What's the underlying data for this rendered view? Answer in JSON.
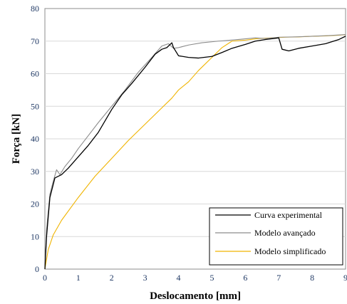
{
  "chart_data": {
    "type": "line",
    "title": "",
    "xlabel": "Deslocamento [mm]",
    "ylabel": "Força [kN]",
    "xlim": [
      0,
      9
    ],
    "ylim": [
      0,
      80
    ],
    "x_ticks": [
      "0",
      "1",
      "2",
      "3",
      "4",
      "5",
      "6",
      "7",
      "8",
      "9"
    ],
    "y_ticks": [
      "0",
      "10",
      "20",
      "30",
      "40",
      "50",
      "60",
      "70",
      "80"
    ],
    "grid": "horizontal",
    "legend_position": "bottom-right",
    "series": [
      {
        "name": "Curva experimental",
        "color": "#000000",
        "points": [
          [
            0,
            0
          ],
          [
            0.05,
            10
          ],
          [
            0.15,
            22
          ],
          [
            0.3,
            28
          ],
          [
            0.5,
            29
          ],
          [
            0.7,
            31
          ],
          [
            1.0,
            34.5
          ],
          [
            1.3,
            38
          ],
          [
            1.6,
            42
          ],
          [
            2.0,
            49
          ],
          [
            2.3,
            53.5
          ],
          [
            2.6,
            57
          ],
          [
            3.0,
            62
          ],
          [
            3.3,
            66
          ],
          [
            3.5,
            67.5
          ],
          [
            3.65,
            68
          ],
          [
            3.8,
            69.5
          ],
          [
            3.85,
            68
          ],
          [
            4.0,
            65.5
          ],
          [
            4.3,
            65
          ],
          [
            4.6,
            64.8
          ],
          [
            5.0,
            65.3
          ],
          [
            5.3,
            66.5
          ],
          [
            5.6,
            67.8
          ],
          [
            6.0,
            69
          ],
          [
            6.3,
            70
          ],
          [
            6.6,
            70.5
          ],
          [
            7.0,
            71
          ],
          [
            7.1,
            67.5
          ],
          [
            7.3,
            67
          ],
          [
            7.6,
            67.8
          ],
          [
            8.0,
            68.5
          ],
          [
            8.4,
            69.2
          ],
          [
            8.8,
            70.5
          ],
          [
            9.0,
            71.5
          ]
        ]
      },
      {
        "name": "Modelo avançado",
        "color": "#8c8c8c",
        "points": [
          [
            0,
            0
          ],
          [
            0.05,
            12
          ],
          [
            0.15,
            23
          ],
          [
            0.25,
            27
          ],
          [
            0.35,
            30.5
          ],
          [
            0.45,
            29
          ],
          [
            0.6,
            31.5
          ],
          [
            0.8,
            34
          ],
          [
            1.0,
            37
          ],
          [
            1.3,
            41
          ],
          [
            1.6,
            45
          ],
          [
            2.0,
            50
          ],
          [
            2.4,
            55
          ],
          [
            2.8,
            60.5
          ],
          [
            3.2,
            65
          ],
          [
            3.5,
            68.5
          ],
          [
            3.7,
            69.2
          ],
          [
            3.85,
            67.8
          ],
          [
            4.0,
            68
          ],
          [
            4.3,
            68.8
          ],
          [
            4.7,
            69.5
          ],
          [
            5.2,
            70
          ],
          [
            5.8,
            70.5
          ],
          [
            6.3,
            71
          ],
          [
            6.6,
            70.8
          ],
          [
            7.0,
            71.2
          ],
          [
            7.5,
            71.3
          ],
          [
            8.0,
            71.5
          ],
          [
            8.5,
            71.7
          ],
          [
            9.0,
            72
          ]
        ]
      },
      {
        "name": "Modelo simplificado",
        "color": "#f0b400",
        "points": [
          [
            0,
            0
          ],
          [
            0.1,
            6
          ],
          [
            0.25,
            10.5
          ],
          [
            0.5,
            15
          ],
          [
            0.75,
            18.5
          ],
          [
            1.0,
            22
          ],
          [
            1.5,
            28.5
          ],
          [
            2.0,
            34
          ],
          [
            2.5,
            39.5
          ],
          [
            3.0,
            44.5
          ],
          [
            3.5,
            49.5
          ],
          [
            3.8,
            52.5
          ],
          [
            4.0,
            55
          ],
          [
            4.3,
            57.5
          ],
          [
            4.6,
            61
          ],
          [
            5.0,
            65
          ],
          [
            5.3,
            68
          ],
          [
            5.6,
            70
          ],
          [
            6.0,
            70.3
          ],
          [
            6.4,
            70.8
          ],
          [
            6.8,
            71
          ],
          [
            7.2,
            71.2
          ],
          [
            7.6,
            71.3
          ],
          [
            8.0,
            71.5
          ],
          [
            8.4,
            71.6
          ],
          [
            8.8,
            71.8
          ],
          [
            9.0,
            72
          ]
        ]
      }
    ]
  }
}
